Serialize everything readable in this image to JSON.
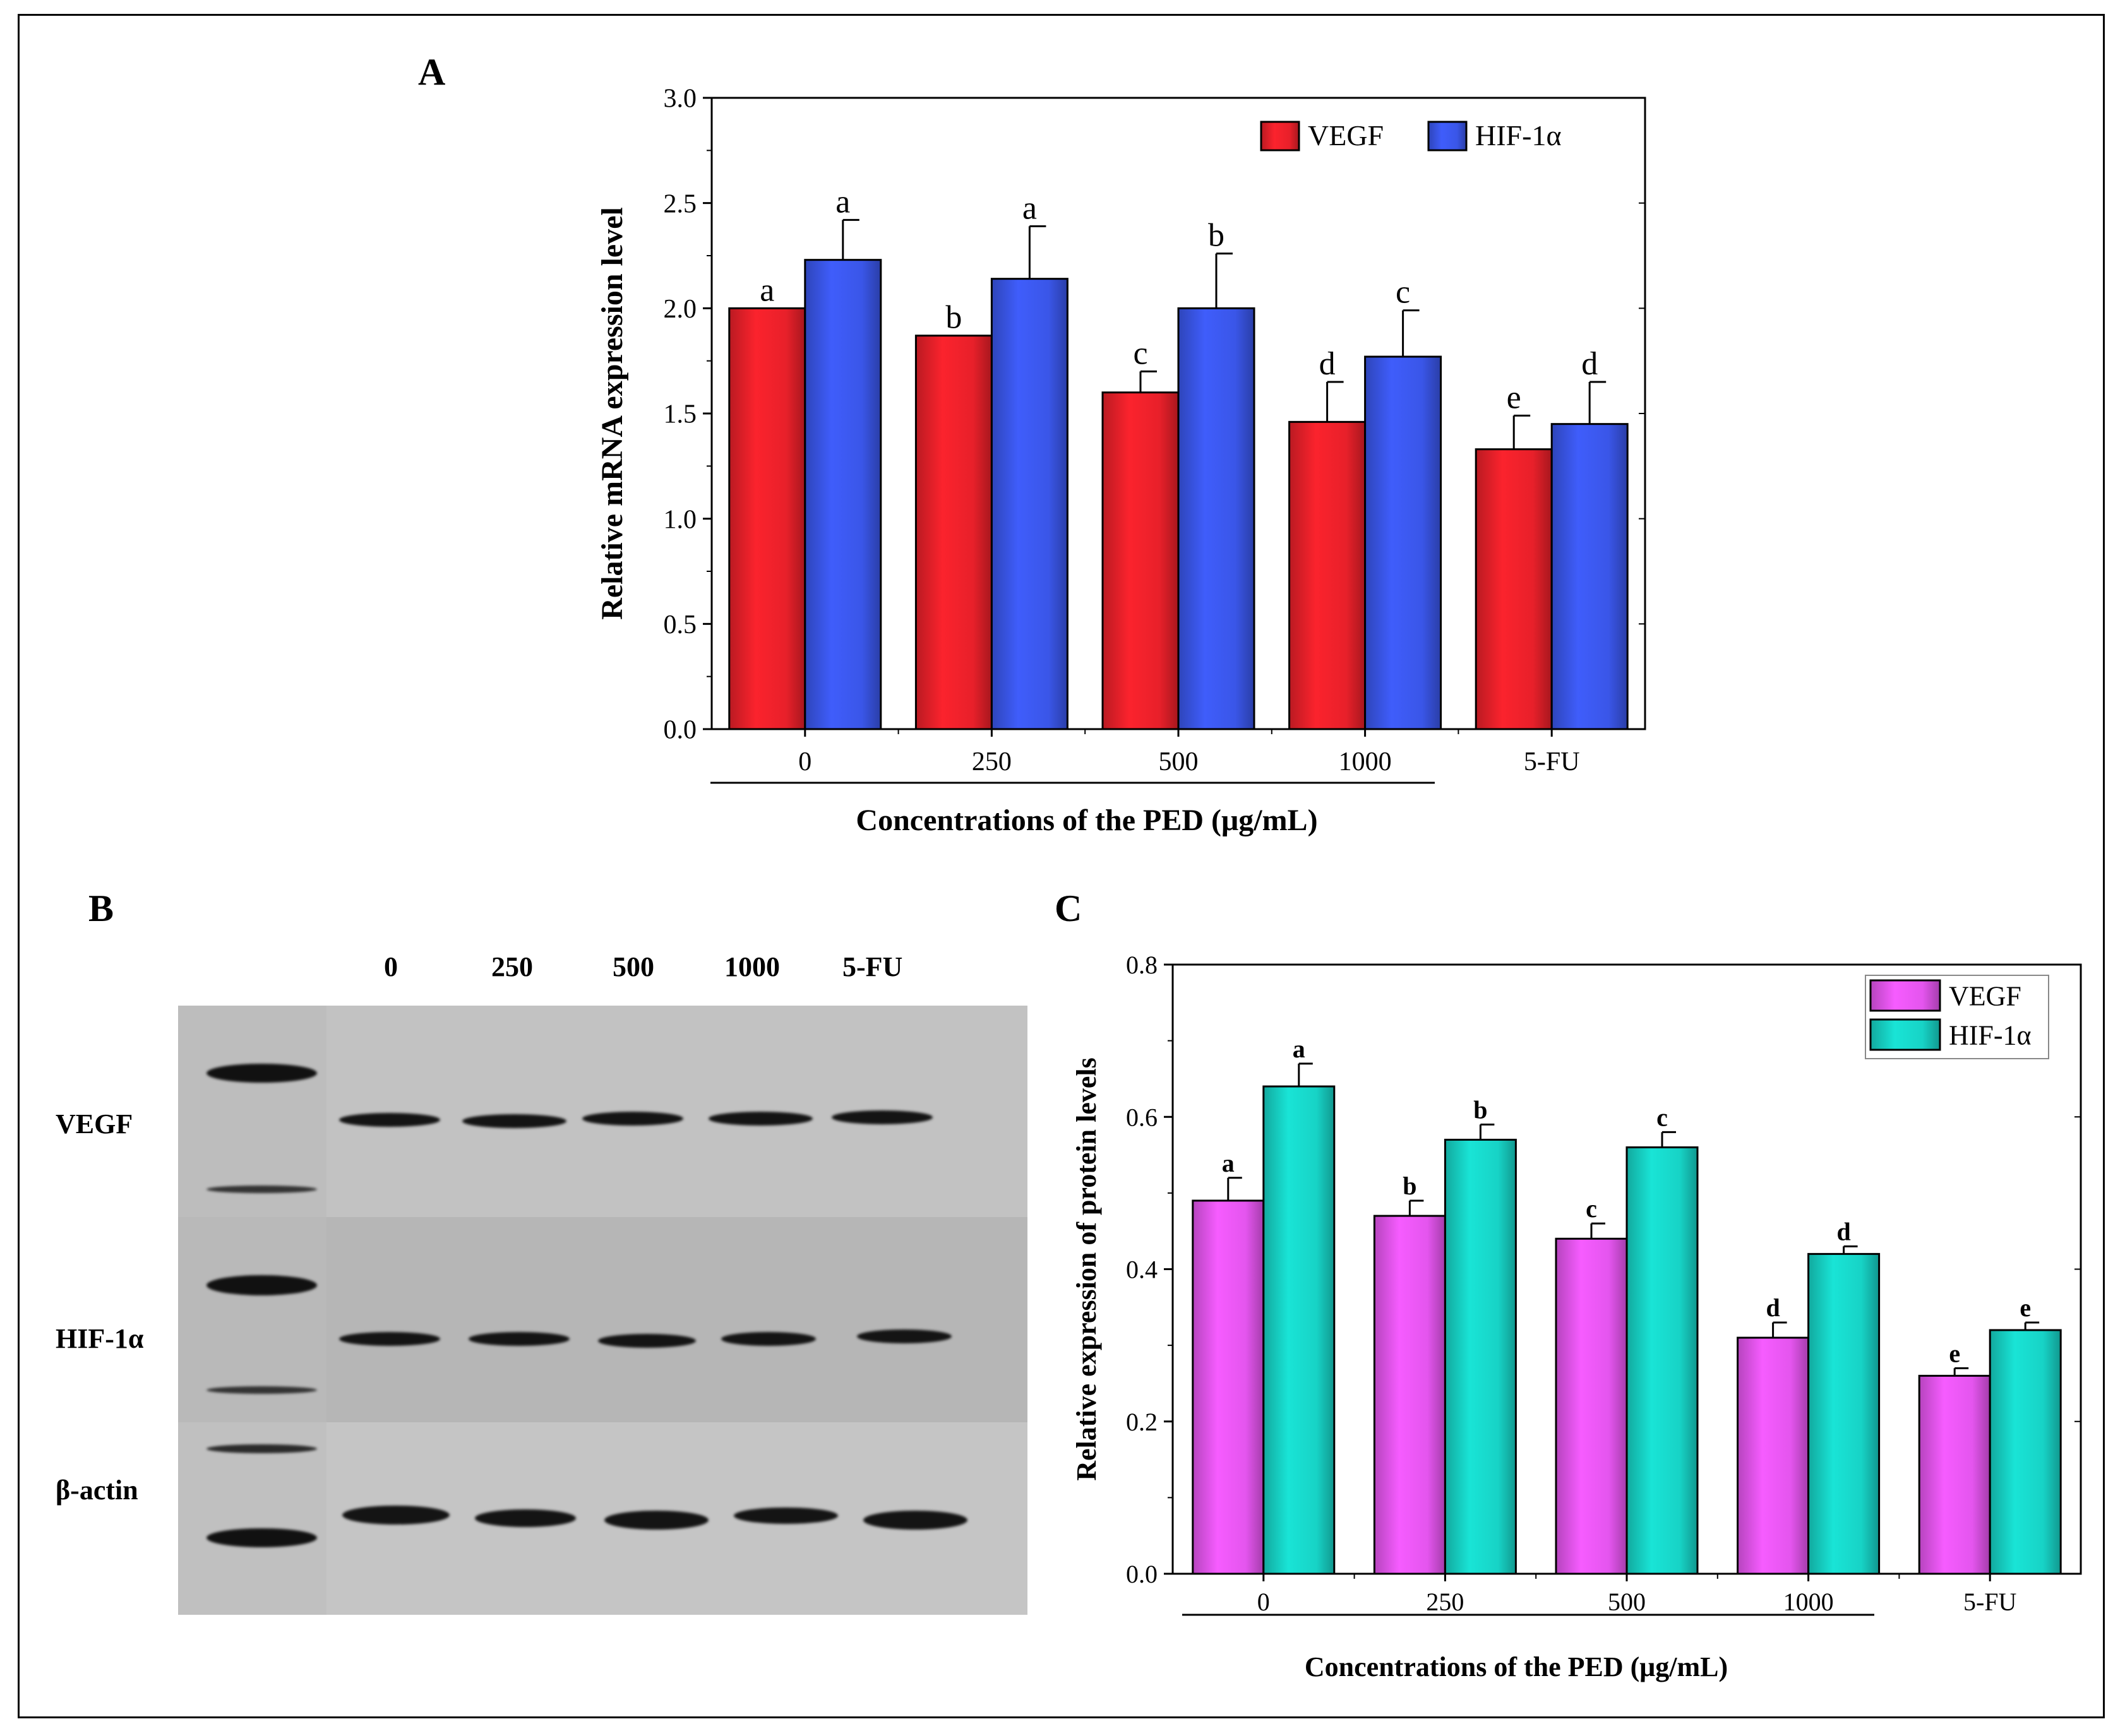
{
  "panels": {
    "a_label": "A",
    "b_label": "B",
    "c_label": "C"
  },
  "chart_data": [
    {
      "type": "bar",
      "panel": "A",
      "categories": [
        "0",
        "250",
        "500",
        "1000",
        "5-FU"
      ],
      "series": [
        {
          "name": "VEGF",
          "color": "#e8202a",
          "values": [
            2.0,
            1.87,
            1.6,
            1.46,
            1.33
          ],
          "errors": [
            0.0,
            0.0,
            0.1,
            0.19,
            0.16
          ],
          "letters": [
            "a",
            "b",
            "c",
            "d",
            "e"
          ]
        },
        {
          "name": "HIF-1α",
          "color": "#3a56e8",
          "values": [
            2.23,
            2.14,
            2.0,
            1.77,
            1.45
          ],
          "errors": [
            0.19,
            0.25,
            0.26,
            0.22,
            0.2
          ],
          "letters": [
            "a",
            "a",
            "b",
            "c",
            "d"
          ]
        }
      ],
      "ylabel": "Relative mRNA expression level",
      "xlabel": "Concentrations of the PED (μg/mL)",
      "ylim": [
        0,
        3.0
      ],
      "yticks": [
        "0.0",
        "0.5",
        "1.0",
        "1.5",
        "2.0",
        "2.5",
        "3.0"
      ],
      "legend_position": "top-right"
    },
    {
      "type": "bar",
      "panel": "C",
      "categories": [
        "0",
        "250",
        "500",
        "1000",
        "5-FU"
      ],
      "series": [
        {
          "name": "VEGF",
          "color": "#e455ee",
          "values": [
            0.49,
            0.47,
            0.44,
            0.31,
            0.26
          ],
          "errors": [
            0.03,
            0.02,
            0.02,
            0.02,
            0.01
          ],
          "letters": [
            "a",
            "b",
            "c",
            "d",
            "e"
          ]
        },
        {
          "name": "HIF-1α",
          "color": "#17d3c6",
          "values": [
            0.64,
            0.57,
            0.56,
            0.42,
            0.32
          ],
          "errors": [
            0.03,
            0.02,
            0.02,
            0.01,
            0.01
          ],
          "letters": [
            "a",
            "b",
            "c",
            "d",
            "e"
          ]
        }
      ],
      "ylabel": "Relative expression of protein levels",
      "xlabel": "Concentrations of the PED (μg/mL)",
      "ylim": [
        0,
        0.8
      ],
      "yticks": [
        "0.0",
        "0.2",
        "0.4",
        "0.6",
        "0.8"
      ],
      "legend_position": "top-right"
    }
  ],
  "blot": {
    "lanes": [
      "0",
      "250",
      "500",
      "1000",
      "5-FU"
    ],
    "rows": [
      "VEGF",
      "HIF-1α",
      "β-actin"
    ]
  }
}
